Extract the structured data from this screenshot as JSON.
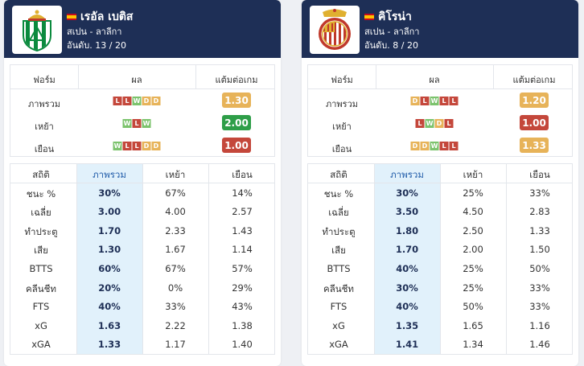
{
  "colors": {
    "header_bg": "#1e2f56",
    "win": "#7cc36d",
    "draw": "#e7b359",
    "loss": "#c4473b",
    "good": "#2e9e48",
    "avg": "#e7b359",
    "bad": "#c4473b",
    "highlight": "#e1f1fb"
  },
  "teams": [
    {
      "name": "เรอัล เบติส",
      "league": "สเปน - ลาลีกา",
      "rank": "อันดับ. 13 / 20",
      "logo_icon": "real-betis-crest-icon",
      "flag_icon": "spain-flag-icon",
      "form_headers": [
        "ฟอร์ม",
        "ผล",
        "แต้มต่อเกม"
      ],
      "form_rows": [
        {
          "label": "ภาพรวม",
          "results": [
            "L",
            "L",
            "W",
            "D",
            "D"
          ],
          "ppg": "1.30",
          "ppg_color": "#e7b359"
        },
        {
          "label": "เหย้า",
          "results": [
            "W",
            "L",
            "W"
          ],
          "ppg": "2.00",
          "ppg_color": "#2e9e48"
        },
        {
          "label": "เยือน",
          "results": [
            "W",
            "L",
            "L",
            "D",
            "D"
          ],
          "ppg": "1.00",
          "ppg_color": "#c4473b"
        }
      ],
      "stat_headers": [
        "สถิติ",
        "ภาพรวม",
        "เหย้า",
        "เยือน"
      ],
      "stat_rows": [
        [
          "ชนะ %",
          "30%",
          "67%",
          "14%"
        ],
        [
          "เฉลี่ย",
          "3.00",
          "4.00",
          "2.57"
        ],
        [
          "ทำประตู",
          "1.70",
          "2.33",
          "1.43"
        ],
        [
          "เสีย",
          "1.30",
          "1.67",
          "1.14"
        ],
        [
          "BTTS",
          "60%",
          "67%",
          "57%"
        ],
        [
          "คลีนชีท",
          "20%",
          "0%",
          "29%"
        ],
        [
          "FTS",
          "40%",
          "33%",
          "43%"
        ],
        [
          "xG",
          "1.63",
          "2.22",
          "1.38"
        ],
        [
          "xGA",
          "1.33",
          "1.17",
          "1.40"
        ]
      ]
    },
    {
      "name": "คิโรน่า",
      "league": "สเปน - ลาลีกา",
      "rank": "อันดับ. 8 / 20",
      "logo_icon": "girona-crest-icon",
      "flag_icon": "spain-flag-icon",
      "form_headers": [
        "ฟอร์ม",
        "ผล",
        "แต้มต่อเกม"
      ],
      "form_rows": [
        {
          "label": "ภาพรวม",
          "results": [
            "D",
            "L",
            "W",
            "L",
            "L"
          ],
          "ppg": "1.20",
          "ppg_color": "#e7b359"
        },
        {
          "label": "เหย้า",
          "results": [
            "L",
            "W",
            "D",
            "L"
          ],
          "ppg": "1.00",
          "ppg_color": "#c4473b"
        },
        {
          "label": "เยือน",
          "results": [
            "D",
            "D",
            "W",
            "L",
            "L"
          ],
          "ppg": "1.33",
          "ppg_color": "#e7b359"
        }
      ],
      "stat_headers": [
        "สถิติ",
        "ภาพรวม",
        "เหย้า",
        "เยือน"
      ],
      "stat_rows": [
        [
          "ชนะ %",
          "30%",
          "25%",
          "33%"
        ],
        [
          "เฉลี่ย",
          "3.50",
          "4.50",
          "2.83"
        ],
        [
          "ทำประตู",
          "1.80",
          "2.50",
          "1.33"
        ],
        [
          "เสีย",
          "1.70",
          "2.00",
          "1.50"
        ],
        [
          "BTTS",
          "40%",
          "25%",
          "50%"
        ],
        [
          "คลีนชีท",
          "30%",
          "25%",
          "33%"
        ],
        [
          "FTS",
          "40%",
          "50%",
          "33%"
        ],
        [
          "xG",
          "1.35",
          "1.65",
          "1.16"
        ],
        [
          "xGA",
          "1.41",
          "1.34",
          "1.46"
        ]
      ]
    }
  ]
}
